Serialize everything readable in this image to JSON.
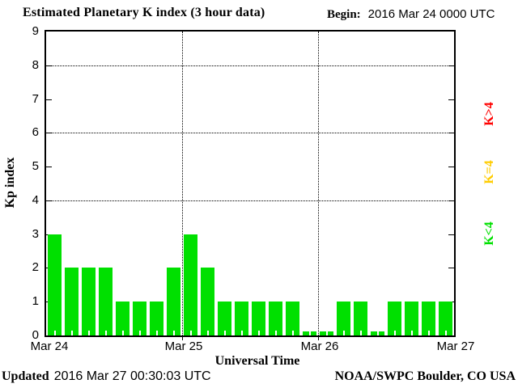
{
  "header": {
    "title": "Estimated Planetary K index (3 hour data)",
    "begin_label": "Begin:",
    "begin_value": "2016 Mar 24 0000 UTC"
  },
  "footer": {
    "updated_label": "Updated",
    "updated_value": "2016 Mar 27 00:30:03 UTC",
    "credit": "NOAA/SWPC Boulder, CO USA"
  },
  "colors": {
    "green": "#00e000",
    "yellow": "#ffcc00",
    "red": "#ff0000",
    "axis": "#000000",
    "background": "#ffffff"
  },
  "legend": [
    {
      "label": "K>4",
      "color_key": "red"
    },
    {
      "label": "K=4",
      "color_key": "yellow"
    },
    {
      "label": "K<4",
      "color_key": "green"
    }
  ],
  "chart_data": {
    "type": "bar",
    "title": "Estimated Planetary K index (3 hour data)",
    "xlabel": "Universal Time",
    "ylabel": "Kp index",
    "ylim": [
      0,
      9
    ],
    "y_ticks": [
      0,
      1,
      2,
      3,
      4,
      5,
      6,
      7,
      8,
      9
    ],
    "y_gridlines": [
      4,
      6,
      8
    ],
    "x_day_labels": [
      "Mar 24",
      "Mar 25",
      "Mar 26",
      "Mar 27"
    ],
    "hours_per_bar": 3,
    "bars_per_day": 8,
    "values": [
      3,
      2,
      2,
      2,
      1,
      1,
      1,
      2,
      3,
      2,
      1,
      1,
      1,
      1,
      1,
      0,
      0,
      1,
      1,
      0,
      1,
      1,
      1,
      1
    ],
    "color_rule": {
      "below_4": "green",
      "equal_4": "yellow",
      "above_4": "red"
    },
    "legend_position": "right",
    "grid": "dotted"
  }
}
